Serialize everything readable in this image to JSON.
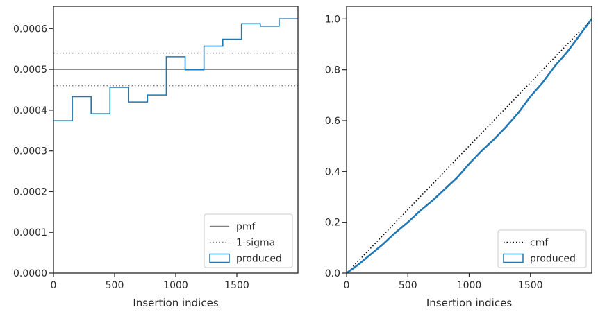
{
  "chart_data": [
    {
      "type": "step",
      "title": "",
      "xlabel": "Insertion indices",
      "ylabel": "",
      "xlim": [
        0,
        2000
      ],
      "ylim": [
        0,
        0.000655
      ],
      "xticks": [
        0,
        500,
        1000,
        1500
      ],
      "xtick_labels": [
        "0",
        "500",
        "1000",
        "1500"
      ],
      "yticks": [
        0,
        0.0001,
        0.0002,
        0.0003,
        0.0004,
        0.0005,
        0.0006
      ],
      "ytick_labels": [
        "0.0000",
        "0.0001",
        "0.0002",
        "0.0003",
        "0.0004",
        "0.0005",
        "0.0006"
      ],
      "grid": false,
      "legend_position": "lower-right",
      "reference_lines": [
        {
          "name": "pmf",
          "style": "solid",
          "color": "#808080",
          "y": 0.0005
        },
        {
          "name": "1-sigma",
          "style": "dotted",
          "color": "#808080",
          "y": [
            0.00046,
            0.00054
          ]
        }
      ],
      "series": [
        {
          "name": "produced",
          "color": "#1f77b4",
          "bin_edges": [
            0,
            154,
            308,
            462,
            615,
            769,
            923,
            1077,
            1231,
            1385,
            1538,
            1692,
            1846,
            2000
          ],
          "values": [
            0.000374,
            0.000433,
            0.000391,
            0.000456,
            0.00042,
            0.000437,
            0.000531,
            0.000499,
            0.000557,
            0.000574,
            0.000612,
            0.000606,
            0.000624
          ]
        }
      ],
      "legend": [
        "pmf",
        "1-sigma",
        "produced"
      ]
    },
    {
      "type": "line",
      "title": "",
      "xlabel": "Insertion indices",
      "ylabel": "",
      "xlim": [
        0,
        2000
      ],
      "ylim": [
        0,
        1.05
      ],
      "xticks": [
        0,
        500,
        1000,
        1500
      ],
      "xtick_labels": [
        "0",
        "500",
        "1000",
        "1500"
      ],
      "yticks": [
        0,
        0.2,
        0.4,
        0.6,
        0.8,
        1.0
      ],
      "ytick_labels": [
        "0.0",
        "0.2",
        "0.4",
        "0.6",
        "0.8",
        "1.0"
      ],
      "grid": false,
      "legend_position": "lower-right",
      "reference_lines": [
        {
          "name": "cmf",
          "style": "dotted",
          "color": "#000000",
          "x": [
            0,
            2000
          ],
          "y": [
            0,
            1.0
          ]
        }
      ],
      "series": [
        {
          "name": "produced",
          "color": "#1f77b4",
          "x": [
            0,
            100,
            200,
            300,
            400,
            500,
            600,
            700,
            800,
            900,
            1000,
            1100,
            1200,
            1300,
            1400,
            1500,
            1600,
            1700,
            1800,
            1900,
            2000
          ],
          "y": [
            0,
            0.035,
            0.075,
            0.115,
            0.16,
            0.2,
            0.245,
            0.285,
            0.33,
            0.375,
            0.43,
            0.48,
            0.525,
            0.575,
            0.63,
            0.695,
            0.75,
            0.815,
            0.87,
            0.935,
            1.0
          ]
        }
      ],
      "legend": [
        "cmf",
        "produced"
      ]
    }
  ]
}
